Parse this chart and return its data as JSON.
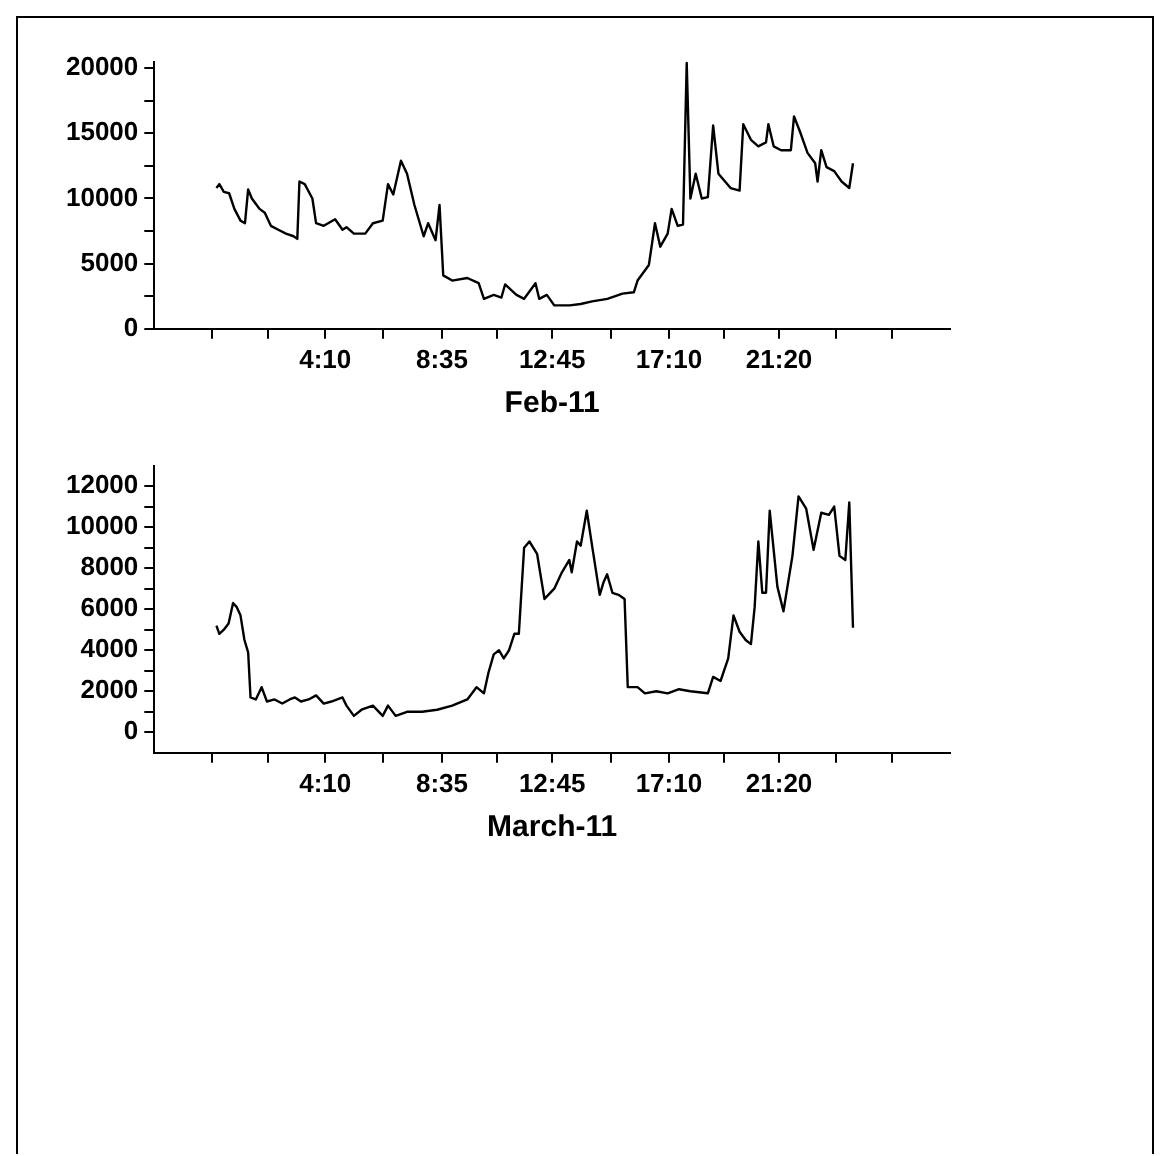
{
  "chart_data": [
    {
      "type": "line",
      "xlabel": "Feb-11",
      "color": "#000000",
      "grid": false,
      "legend": false,
      "marker": "none",
      "line_style": "solid",
      "x": [
        0.05,
        0.16,
        0.33,
        0.53,
        0.73,
        0.96,
        1.13,
        1.25,
        1.39,
        1.68,
        1.88,
        2.11,
        2.39,
        2.68,
        2.97,
        3.11,
        3.19,
        3.39,
        3.68,
        3.82,
        4.11,
        4.54,
        4.82,
        4.97,
        5.25,
        5.68,
        5.97,
        6.34,
        6.54,
        6.74,
        7.03,
        7.26,
        7.54,
        7.89,
        8.06,
        8.34,
        8.49,
        8.63,
        8.97,
        9.54,
        9.97,
        10.17,
        10.54,
        10.83,
        10.97,
        11.4,
        11.69,
        12.12,
        12.26,
        12.55,
        12.83,
        13.41,
        13.83,
        14.26,
        14.84,
        15.41,
        15.84,
        15.98,
        16.41,
        16.64,
        16.84,
        17.12,
        17.27,
        17.5,
        17.7,
        17.84,
        17.98,
        18.18,
        18.41,
        18.64,
        18.84,
        19.04,
        19.5,
        19.84,
        19.98,
        20.27,
        20.55,
        20.84,
        20.93,
        21.13,
        21.41,
        21.78,
        21.9,
        22.13,
        22.41,
        22.7,
        22.79,
        22.93,
        23.13,
        23.42,
        23.7,
        23.99,
        24.13
      ],
      "values": [
        10800,
        11100,
        10500,
        10400,
        9200,
        8300,
        8100,
        10700,
        10000,
        9200,
        8900,
        7900,
        7600,
        7300,
        7100,
        6900,
        11300,
        11100,
        10000,
        8100,
        7900,
        8400,
        7600,
        7800,
        7300,
        7300,
        8100,
        8300,
        11100,
        10300,
        12900,
        11900,
        9500,
        7100,
        8100,
        6800,
        9500,
        4100,
        3700,
        3900,
        3500,
        2300,
        2600,
        2400,
        3400,
        2600,
        2300,
        3500,
        2300,
        2600,
        1800,
        1800,
        1900,
        2100,
        2300,
        2700,
        2800,
        3700,
        4900,
        8100,
        6300,
        7300,
        9200,
        7900,
        8000,
        20400,
        10000,
        11900,
        10000,
        10100,
        15600,
        11900,
        10800,
        10600,
        15700,
        14500,
        14000,
        14300,
        15700,
        14000,
        13700,
        13700,
        16300,
        15100,
        13500,
        12700,
        11300,
        13700,
        12400,
        12100,
        11300,
        10800,
        12700
      ],
      "xlim": [
        -2.3,
        27.8
      ],
      "xticks": [
        {
          "value": -0.12,
          "label": null
        },
        {
          "value": 2.02,
          "label": null
        },
        {
          "value": 4.1667,
          "label": "4:10"
        },
        {
          "value": 6.37,
          "label": null
        },
        {
          "value": 8.5833,
          "label": "8:35"
        },
        {
          "value": 10.67,
          "label": null
        },
        {
          "value": 12.75,
          "label": "12:45"
        },
        {
          "value": 14.96,
          "label": null
        },
        {
          "value": 17.1667,
          "label": "17:10"
        },
        {
          "value": 19.25,
          "label": null
        },
        {
          "value": 21.3333,
          "label": "21:20"
        },
        {
          "value": 23.48,
          "label": null
        },
        {
          "value": 25.62,
          "label": null
        }
      ],
      "ylim": [
        0,
        20500
      ],
      "yticks": [
        0,
        {
          "value": 2500,
          "label": null
        },
        5000,
        {
          "value": 7500,
          "label": null
        },
        10000,
        {
          "value": 12500,
          "label": null
        },
        15000,
        {
          "value": 17500,
          "label": null
        },
        20000
      ]
    },
    {
      "type": "line",
      "xlabel": "March-11",
      "color": "#000000",
      "grid": false,
      "legend": false,
      "marker": "none",
      "line_style": "solid",
      "x": [
        0.05,
        0.16,
        0.33,
        0.51,
        0.68,
        0.82,
        0.96,
        1.11,
        1.25,
        1.34,
        1.54,
        1.76,
        1.96,
        2.25,
        2.54,
        2.82,
        3.02,
        3.25,
        3.54,
        3.82,
        4.11,
        4.4,
        4.82,
        4.97,
        5.25,
        5.54,
        5.97,
        6.34,
        6.54,
        6.83,
        7.26,
        7.83,
        8.4,
        8.97,
        9.54,
        9.89,
        10.17,
        10.34,
        10.54,
        10.74,
        10.92,
        11.12,
        11.32,
        11.49,
        11.69,
        11.89,
        12.18,
        12.46,
        12.83,
        13.12,
        13.4,
        13.49,
        13.69,
        13.83,
        14.06,
        14.26,
        14.55,
        14.69,
        14.83,
        15.03,
        15.26,
        15.49,
        15.61,
        15.98,
        16.26,
        16.69,
        17.12,
        17.55,
        17.98,
        18.64,
        18.84,
        19.12,
        19.41,
        19.61,
        19.84,
        20.07,
        20.27,
        20.41,
        20.55,
        20.7,
        20.84,
        20.98,
        21.27,
        21.5,
        21.84,
        22.07,
        22.36,
        22.64,
        22.93,
        23.22,
        23.42,
        23.62,
        23.84,
        23.99,
        24.13
      ],
      "values": [
        5200,
        4800,
        5000,
        5300,
        6300,
        6100,
        5700,
        4500,
        3900,
        1700,
        1600,
        2200,
        1500,
        1600,
        1400,
        1600,
        1700,
        1500,
        1600,
        1800,
        1400,
        1500,
        1700,
        1300,
        800,
        1100,
        1300,
        800,
        1300,
        800,
        1000,
        1000,
        1100,
        1300,
        1600,
        2200,
        1900,
        2900,
        3800,
        4000,
        3600,
        4000,
        4800,
        4800,
        9000,
        9300,
        8700,
        6500,
        7000,
        7800,
        8400,
        7800,
        9300,
        9100,
        10800,
        9100,
        6700,
        7300,
        7700,
        6800,
        6700,
        6500,
        2200,
        2200,
        1900,
        2000,
        1900,
        2100,
        2000,
        1900,
        2700,
        2500,
        3600,
        5700,
        4900,
        4500,
        4300,
        6100,
        9300,
        6800,
        6800,
        10800,
        7100,
        5900,
        8600,
        11500,
        10900,
        8900,
        10700,
        10600,
        11000,
        8600,
        8400,
        11200,
        5100
      ],
      "xlim": [
        -2.3,
        27.8
      ],
      "xticks": [
        {
          "value": -0.12,
          "label": null
        },
        {
          "value": 2.02,
          "label": null
        },
        {
          "value": 4.1667,
          "label": "4:10"
        },
        {
          "value": 6.37,
          "label": null
        },
        {
          "value": 8.5833,
          "label": "8:35"
        },
        {
          "value": 10.67,
          "label": null
        },
        {
          "value": 12.75,
          "label": "12:45"
        },
        {
          "value": 14.96,
          "label": null
        },
        {
          "value": 17.1667,
          "label": "17:10"
        },
        {
          "value": 19.25,
          "label": null
        },
        {
          "value": 21.3333,
          "label": "21:20"
        },
        {
          "value": 23.48,
          "label": null
        },
        {
          "value": 25.62,
          "label": null
        }
      ],
      "ylim": [
        -1000,
        13000
      ],
      "yticks": [
        0,
        {
          "value": 1000,
          "label": null
        },
        2000,
        {
          "value": 3000,
          "label": null
        },
        4000,
        {
          "value": 5000,
          "label": null
        },
        6000,
        {
          "value": 7000,
          "label": null
        },
        8000,
        {
          "value": 9000,
          "label": null
        },
        10000,
        {
          "value": 11000,
          "label": null
        },
        12000
      ]
    }
  ]
}
